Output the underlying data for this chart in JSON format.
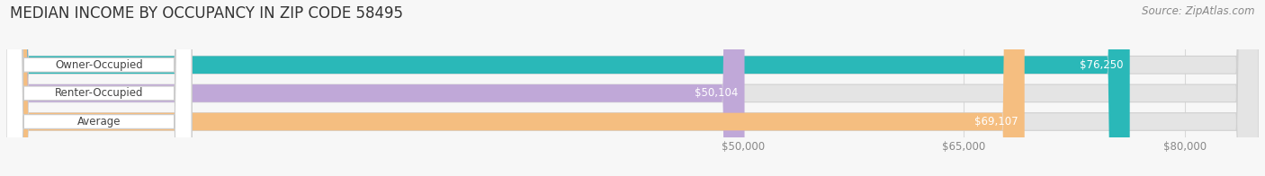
{
  "title": "MEDIAN INCOME BY OCCUPANCY IN ZIP CODE 58495",
  "source": "Source: ZipAtlas.com",
  "categories": [
    "Owner-Occupied",
    "Renter-Occupied",
    "Average"
  ],
  "values": [
    76250,
    50104,
    69107
  ],
  "bar_colors": [
    "#2ab8b8",
    "#c0a8d8",
    "#f5be80"
  ],
  "bar_bg_color": "#e8e8e8",
  "label_values": [
    "$76,250",
    "$50,104",
    "$69,107"
  ],
  "x_ticks": [
    50000,
    65000,
    80000
  ],
  "x_tick_labels": [
    "$50,000",
    "$65,000",
    "$80,000"
  ],
  "x_min": 0,
  "x_max": 85000,
  "title_fontsize": 12,
  "source_fontsize": 8.5,
  "label_fontsize": 8.5,
  "tick_fontsize": 8.5,
  "background_color": "#f7f7f7",
  "pill_bg": "#ffffff",
  "pill_border": "#cccccc",
  "bar_bg": "#e4e4e4",
  "bar_border": "#d0d0d0",
  "value_label_color_inside": "#ffffff",
  "value_label_color_outside": "#555555",
  "category_text_color": "#444444",
  "tick_color": "#888888",
  "grid_color": "#d8d8d8",
  "title_color": "#333333",
  "source_color": "#888888"
}
